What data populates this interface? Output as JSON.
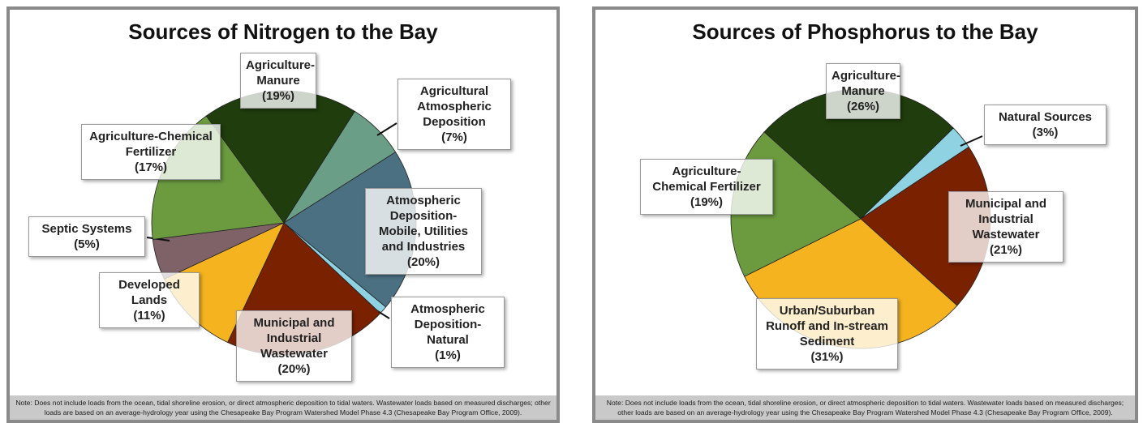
{
  "chart_data": [
    {
      "type": "pie",
      "title": "Sources of Nitrogen to the Bay",
      "categories": [
        "Agriculture-Manure",
        "Agricultural Atmospheric Deposition",
        "Atmospheric Deposition-Mobile, Utilities and Industries",
        "Atmospheric Deposition-Natural",
        "Municipal and Industrial Wastewater",
        "Developed Lands",
        "Septic Systems",
        "Agriculture-Chemical Fertilizer"
      ],
      "values": [
        19,
        7,
        20,
        1,
        20,
        11,
        5,
        17
      ],
      "value_labels": [
        "(19%)",
        "(7%)",
        "(20%)",
        "(1%)",
        "(20%)",
        "(11%)",
        "(5%)",
        "(17%)"
      ],
      "colors": [
        "#1f3d0d",
        "#6b9e86",
        "#4b7082",
        "#8fd3e3",
        "#7a2200",
        "#f5b320",
        "#7e6268",
        "#6b9a3f"
      ],
      "note": "Note: Does not include loads from the ocean, tidal shoreline erosion, or direct atmospheric deposition to tidal waters. Wastewater loads based on measured discharges; other loads are based on an average-hydrology year using the Chesapeake Bay Program Watershed Model Phase 4.3 (Chesapeake Bay Program Office, 2009)."
    },
    {
      "type": "pie",
      "title": "Sources of Phosphorus to the Bay",
      "categories": [
        "Agriculture-Manure",
        "Natural Sources",
        "Municipal and Industrial Wastewater",
        "Urban/Suburban Runoff and In-stream Sediment",
        "Agriculture-Chemical Fertilizer"
      ],
      "values": [
        26,
        3,
        21,
        31,
        19
      ],
      "value_labels": [
        "(26%)",
        "(3%)",
        "(21%)",
        "(31%)",
        "(19%)"
      ],
      "colors": [
        "#1f3d0d",
        "#8fd3e3",
        "#7a2200",
        "#f5b320",
        "#6b9a3f"
      ],
      "note": "Note: Does not include loads from the ocean, tidal shoreline erosion, or direct atmospheric deposition to tidal waters. Wastewater loads based on measured discharges; other loads are based on an average-hydrology year using the Chesapeake Bay Program Watershed Model Phase 4.3 (Chesapeake Bay Program Office, 2009)."
    }
  ]
}
